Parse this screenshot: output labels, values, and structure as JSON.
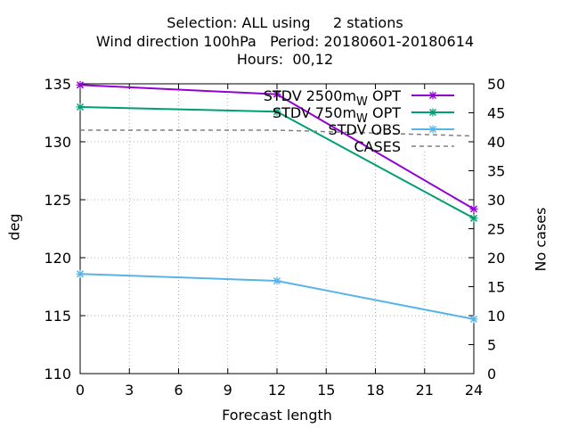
{
  "title_lines": [
    "Selection: ALL using     2 stations",
    "Wind direction 100hPa   Period: 20180601-20180614",
    "Hours:  00,12"
  ],
  "chart_data": {
    "type": "line",
    "title": "Selection: ALL using     2 stations / Wind direction 100hPa   Period: 20180601-20180614 / Hours:  00,12",
    "xlabel": "Forecast length",
    "ylabel": "deg",
    "y2label": "No cases",
    "xlim": [
      0,
      24
    ],
    "ylim": [
      110,
      135
    ],
    "y2lim": [
      0,
      50
    ],
    "xticks": [
      "0",
      "3",
      "6",
      "9",
      "12",
      "15",
      "18",
      "21",
      "24"
    ],
    "yticks": [
      "110",
      "115",
      "120",
      "125",
      "130",
      "135"
    ],
    "y2ticks": [
      "0",
      "5",
      "10",
      "15",
      "20",
      "25",
      "30",
      "35",
      "40",
      "45",
      "50"
    ],
    "grid": true,
    "legend_position": "top-right",
    "series": [
      {
        "name": "STDV 2500m_W OPT",
        "legend_main": "STDV 2500m",
        "legend_sub": "W",
        "legend_tail": " OPT",
        "axis": "left",
        "color": "#9400d3",
        "style": "solid",
        "marker": "x",
        "x": [
          0,
          12,
          24
        ],
        "y": [
          134.9,
          134.1,
          124.2
        ]
      },
      {
        "name": "STDV 750m_W OPT",
        "legend_main": "STDV 750m",
        "legend_sub": "W",
        "legend_tail": " OPT",
        "axis": "left",
        "color": "#009e73",
        "style": "solid",
        "marker": "x",
        "x": [
          0,
          12,
          24
        ],
        "y": [
          133.0,
          132.6,
          123.4
        ]
      },
      {
        "name": "STDV OBS",
        "legend_main": "STDV OBS",
        "legend_sub": "",
        "legend_tail": "",
        "axis": "left",
        "color": "#56b4e9",
        "style": "solid",
        "marker": "x",
        "x": [
          0,
          12,
          24
        ],
        "y": [
          118.6,
          118.0,
          114.7
        ]
      },
      {
        "name": "CASES",
        "legend_main": "CASES",
        "legend_sub": "",
        "legend_tail": "",
        "axis": "right",
        "color": "#808080",
        "style": "dashed",
        "marker": "none",
        "x": [
          0,
          12,
          24
        ],
        "y": [
          42,
          42,
          41
        ]
      }
    ]
  }
}
